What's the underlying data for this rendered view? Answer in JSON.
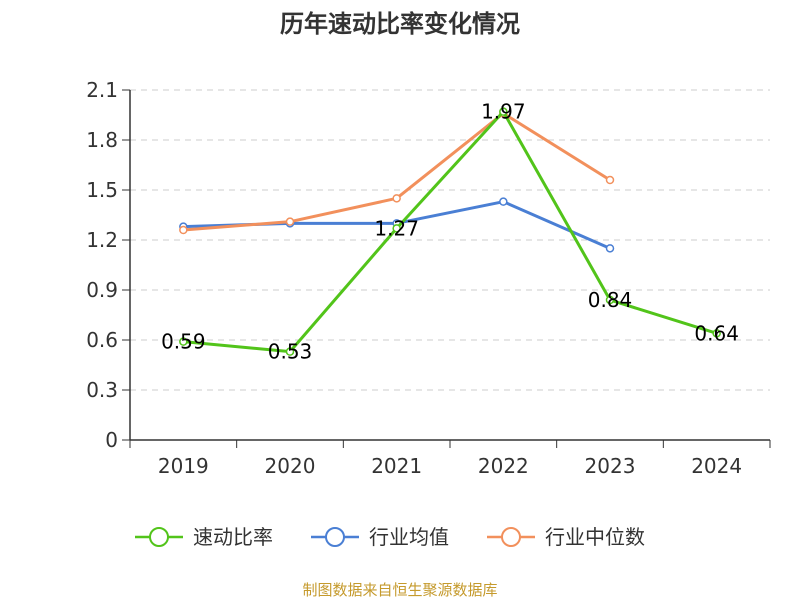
{
  "chart_data": {
    "type": "line",
    "title": "历年速动比率变化情况",
    "categories": [
      "2019",
      "2020",
      "2021",
      "2022",
      "2023",
      "2024"
    ],
    "y_ticks": [
      "0",
      "0.3",
      "0.6",
      "0.9",
      "1.2",
      "1.5",
      "1.8",
      "2.1"
    ],
    "ylim": [
      0,
      2.1
    ],
    "grid": true,
    "legend_position": "bottom",
    "series": [
      {
        "name": "速动比率",
        "color": "#52c41a",
        "values": [
          0.59,
          0.53,
          1.27,
          1.97,
          0.84,
          0.64
        ],
        "labels": [
          "0.59",
          "0.53",
          "1.27",
          "1.97",
          "0.84",
          "0.64"
        ]
      },
      {
        "name": "行业均值",
        "color": "#4a7fd4",
        "values": [
          1.28,
          1.3,
          1.3,
          1.43,
          1.15,
          null
        ]
      },
      {
        "name": "行业中位数",
        "color": "#f2905c",
        "values": [
          1.26,
          1.31,
          1.45,
          1.96,
          1.56,
          null
        ]
      }
    ],
    "source": "制图数据来自恒生聚源数据库"
  },
  "colors": {
    "source_text": "#c59a2c",
    "axis": "#333333",
    "grid": "#cccccc"
  }
}
